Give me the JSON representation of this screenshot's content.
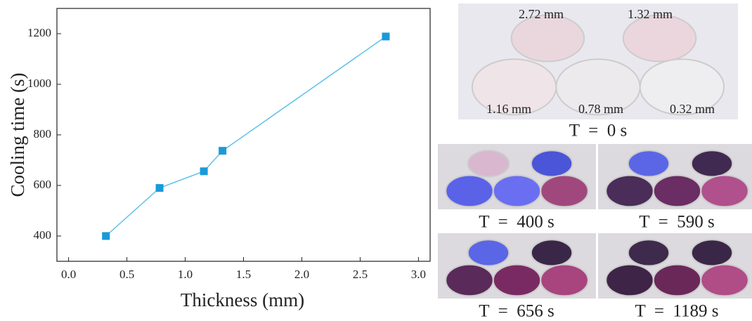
{
  "chart_data": {
    "type": "line",
    "x_label": "Thickness (mm)",
    "y_label": "Cooling time (s)",
    "x": [
      0.32,
      0.78,
      1.16,
      1.32,
      2.72
    ],
    "values": [
      400,
      590,
      656,
      737,
      1189
    ],
    "color": "#1a9ad8",
    "line_color": "#5cc0e8",
    "xlim": [
      -0.1,
      3.1
    ],
    "xticks": [
      {
        "value": 0,
        "label": "0.0"
      },
      0.5,
      {
        "value": 1,
        "label": "1.0"
      },
      1.5,
      {
        "value": 2,
        "label": "2.0"
      },
      2.5,
      {
        "value": 3,
        "label": "3.0"
      }
    ],
    "ylim": [
      300,
      1300
    ],
    "yticks": [
      400,
      600,
      800,
      1000,
      1200
    ]
  },
  "photos": {
    "main": {
      "labels": [
        "2.72 mm",
        "1.32 mm",
        "1.16 mm",
        "0.78 mm",
        "0.32 mm"
      ],
      "caption": "T  =  0 s"
    },
    "panels": [
      {
        "caption": "T  =  400 s"
      },
      {
        "caption": "T  =  590 s"
      },
      {
        "caption": "T  =  656 s"
      },
      {
        "caption": "T  =  1189 s"
      }
    ]
  }
}
